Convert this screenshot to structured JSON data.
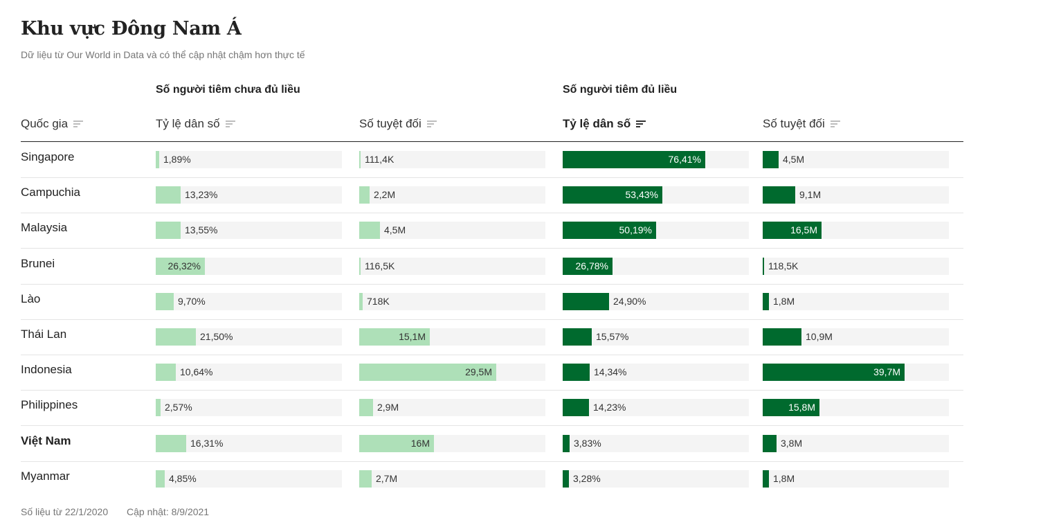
{
  "title": "Khu vực Đông Nam Á",
  "subtitle": "Dữ liệu từ Our World in Data và có thể cập nhật chậm hơn thực tế",
  "groups": {
    "partial": "Số người tiêm chưa đủ liều",
    "full": "Số người tiêm đủ liều"
  },
  "headers": {
    "country": "Quốc gia",
    "partial_pct": "Tỷ lệ dân số",
    "partial_abs": "Số tuyệt đối",
    "full_pct": "Tỷ lệ dân số",
    "full_abs": "Số tuyệt đối"
  },
  "sort_active": "full_pct",
  "highlight_country": "Việt Nam",
  "colors": {
    "light_bar": "#aee0b8",
    "dark_bar": "#006a2e",
    "track": "#f4f4f4"
  },
  "footer": {
    "since": "Số liệu từ 22/1/2020",
    "updated": "Cập nhật: 8/9/2021"
  },
  "chart_data": {
    "type": "table",
    "columns": [
      "Quốc gia",
      "Tỷ lệ dân số (chưa đủ liều)",
      "Số tuyệt đối (chưa đủ liều)",
      "Tỷ lệ dân số (đủ liều)",
      "Số tuyệt đối (đủ liều)"
    ],
    "rows": [
      {
        "country": "Singapore",
        "partial_pct": 1.89,
        "partial_pct_label": "1,89%",
        "partial_abs": 111400,
        "partial_abs_label": "111,4K",
        "full_pct": 76.41,
        "full_pct_label": "76,41%",
        "full_abs": 4500000,
        "full_abs_label": "4,5M"
      },
      {
        "country": "Campuchia",
        "partial_pct": 13.23,
        "partial_pct_label": "13,23%",
        "partial_abs": 2200000,
        "partial_abs_label": "2,2M",
        "full_pct": 53.43,
        "full_pct_label": "53,43%",
        "full_abs": 9100000,
        "full_abs_label": "9,1M"
      },
      {
        "country": "Malaysia",
        "partial_pct": 13.55,
        "partial_pct_label": "13,55%",
        "partial_abs": 4500000,
        "partial_abs_label": "4,5M",
        "full_pct": 50.19,
        "full_pct_label": "50,19%",
        "full_abs": 16500000,
        "full_abs_label": "16,5M"
      },
      {
        "country": "Brunei",
        "partial_pct": 26.32,
        "partial_pct_label": "26,32%",
        "partial_abs": 116500,
        "partial_abs_label": "116,5K",
        "full_pct": 26.78,
        "full_pct_label": "26,78%",
        "full_abs": 118500,
        "full_abs_label": "118,5K"
      },
      {
        "country": "Lào",
        "partial_pct": 9.7,
        "partial_pct_label": "9,70%",
        "partial_abs": 718000,
        "partial_abs_label": "718K",
        "full_pct": 24.9,
        "full_pct_label": "24,90%",
        "full_abs": 1800000,
        "full_abs_label": "1,8M"
      },
      {
        "country": "Thái Lan",
        "partial_pct": 21.5,
        "partial_pct_label": "21,50%",
        "partial_abs": 15100000,
        "partial_abs_label": "15,1M",
        "full_pct": 15.57,
        "full_pct_label": "15,57%",
        "full_abs": 10900000,
        "full_abs_label": "10,9M"
      },
      {
        "country": "Indonesia",
        "partial_pct": 10.64,
        "partial_pct_label": "10,64%",
        "partial_abs": 29500000,
        "partial_abs_label": "29,5M",
        "full_pct": 14.34,
        "full_pct_label": "14,34%",
        "full_abs": 39700000,
        "full_abs_label": "39,7M"
      },
      {
        "country": "Philippines",
        "partial_pct": 2.57,
        "partial_pct_label": "2,57%",
        "partial_abs": 2900000,
        "partial_abs_label": "2,9M",
        "full_pct": 14.23,
        "full_pct_label": "14,23%",
        "full_abs": 15800000,
        "full_abs_label": "15,8M"
      },
      {
        "country": "Việt Nam",
        "partial_pct": 16.31,
        "partial_pct_label": "16,31%",
        "partial_abs": 16000000,
        "partial_abs_label": "16M",
        "full_pct": 3.83,
        "full_pct_label": "3,83%",
        "full_abs": 3800000,
        "full_abs_label": "3,8M"
      },
      {
        "country": "Myanmar",
        "partial_pct": 4.85,
        "partial_pct_label": "4,85%",
        "partial_abs": 2700000,
        "partial_abs_label": "2,7M",
        "full_pct": 3.28,
        "full_pct_label": "3,28%",
        "full_abs": 1800000,
        "full_abs_label": "1,8M"
      }
    ]
  }
}
